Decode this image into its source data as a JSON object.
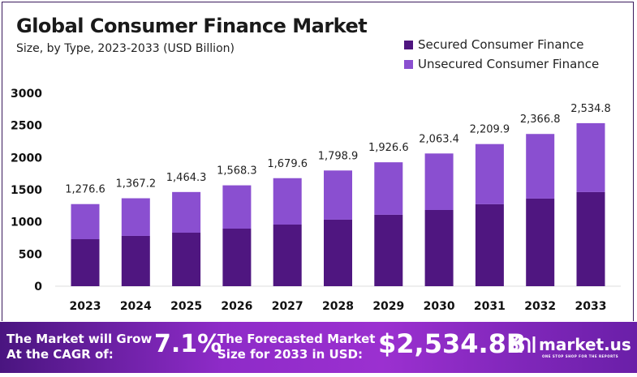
{
  "chart_data": {
    "type": "bar",
    "stacked": true,
    "title": "Global Consumer Finance Market",
    "subtitle": "Size, by Type, 2023-2033 (USD Billion)",
    "categories": [
      "2023",
      "2024",
      "2025",
      "2026",
      "2027",
      "2028",
      "2029",
      "2030",
      "2031",
      "2032",
      "2033"
    ],
    "series": [
      {
        "name": "Secured Consumer Finance",
        "color": "#4f1680",
        "values": [
          731,
          782,
          832,
          895,
          958,
          1034,
          1110,
          1185,
          1274,
          1362,
          1463
        ]
      },
      {
        "name": "Unsecured Consumer Finance",
        "color": "#8a4fd0",
        "values": [
          545.6,
          585.2,
          632.3,
          673.3,
          721.6,
          764.9,
          816.6,
          878.4,
          935.9,
          1004.8,
          1071.8
        ]
      }
    ],
    "totals_labels": [
      "1,276.6",
      "1,367.2",
      "1,464.3",
      "1,568.3",
      "1,679.6",
      "1,798.9",
      "1,926.6",
      "2,063.4",
      "2,209.9",
      "2,366.8",
      "2,534.8"
    ],
    "totals": [
      1276.6,
      1367.2,
      1464.3,
      1568.3,
      1679.6,
      1798.9,
      1926.6,
      2063.4,
      2209.9,
      2366.8,
      2534.8
    ],
    "yticks": [
      0,
      500,
      1000,
      1500,
      2000,
      2500,
      3000
    ],
    "ylim": [
      0,
      3000
    ],
    "grid": false,
    "legend": "top-right"
  },
  "banner": {
    "cagr_text_1": "The Market will Grow",
    "cagr_text_2": "At the CAGR of:",
    "cagr_value": "7.1%",
    "forecast_text_1": "The Forecasted Market",
    "forecast_text_2": "Size for 2033 in USD:",
    "forecast_value": "$2,534.8B",
    "logo": "market.us",
    "logo_tagline": "ONE STOP SHOP FOR THE REPORTS"
  }
}
